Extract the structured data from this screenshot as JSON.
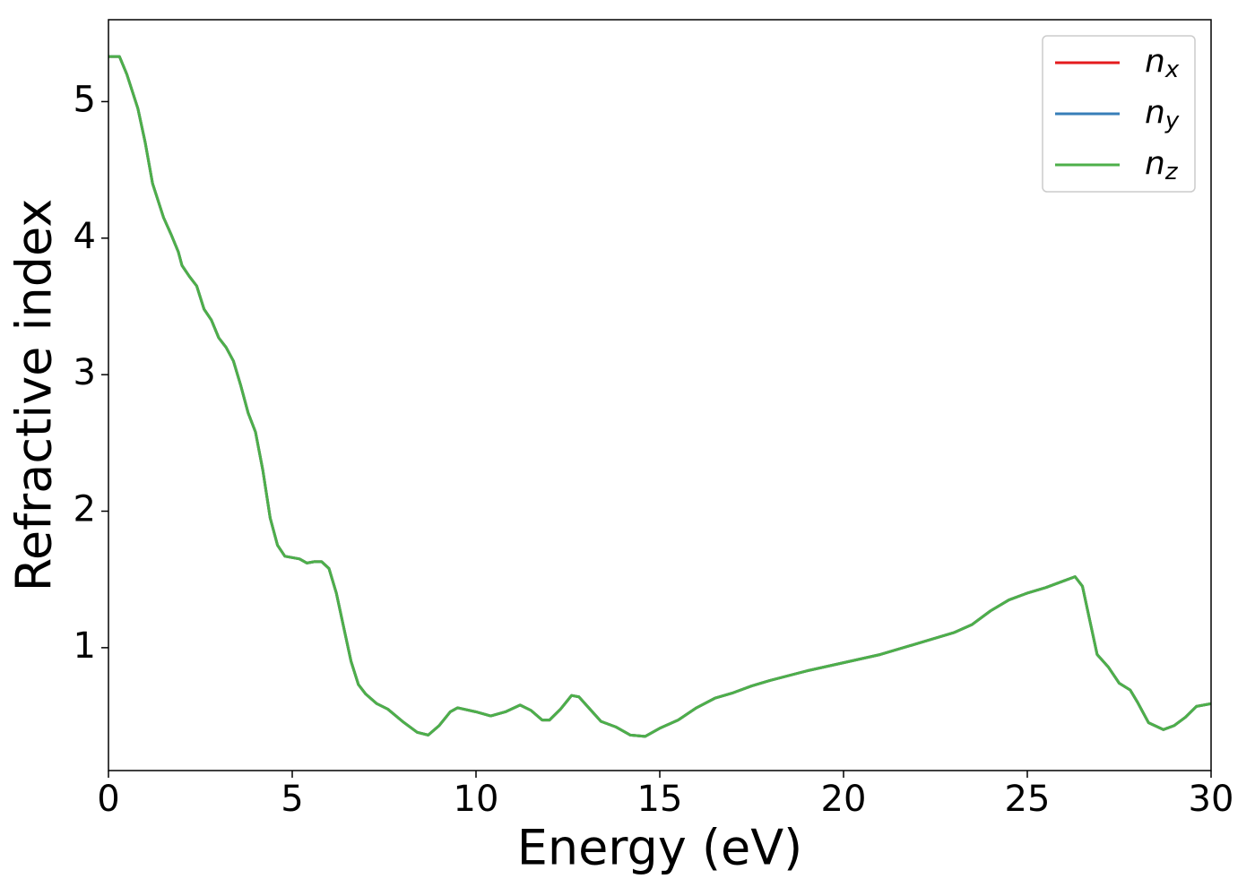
{
  "chart_data": {
    "type": "line",
    "xlabel": "Energy (eV)",
    "ylabel": "Refractive index",
    "x": [
      0,
      0.3,
      0.5,
      0.8,
      1.0,
      1.2,
      1.5,
      1.7,
      1.9,
      2.0,
      2.2,
      2.4,
      2.6,
      2.8,
      3.0,
      3.2,
      3.4,
      3.6,
      3.8,
      4.0,
      4.2,
      4.4,
      4.6,
      4.8,
      5.0,
      5.2,
      5.4,
      5.6,
      5.8,
      6.0,
      6.2,
      6.4,
      6.6,
      6.8,
      7.0,
      7.3,
      7.6,
      8.0,
      8.4,
      8.7,
      9.0,
      9.3,
      9.5,
      10.0,
      10.4,
      10.8,
      11.2,
      11.5,
      11.8,
      12.0,
      12.3,
      12.6,
      12.8,
      13.1,
      13.4,
      13.8,
      14.2,
      14.6,
      15.0,
      15.5,
      16.0,
      16.5,
      17.0,
      17.5,
      18.0,
      19.0,
      20.0,
      21.0,
      22.0,
      23.0,
      23.5,
      24.0,
      24.5,
      25.0,
      25.5,
      26.0,
      26.3,
      26.5,
      26.7,
      26.9,
      27.2,
      27.5,
      27.8,
      28.0,
      28.3,
      28.7,
      29.0,
      29.3,
      29.6,
      30.0
    ],
    "series": [
      {
        "name": "nx",
        "color": "#e41a1c",
        "values": [
          5.33,
          5.33,
          5.2,
          4.95,
          4.7,
          4.4,
          4.15,
          4.03,
          3.9,
          3.8,
          3.72,
          3.65,
          3.48,
          3.4,
          3.27,
          3.2,
          3.1,
          2.92,
          2.72,
          2.58,
          2.3,
          1.95,
          1.75,
          1.67,
          1.66,
          1.65,
          1.62,
          1.63,
          1.63,
          1.58,
          1.4,
          1.15,
          0.9,
          0.73,
          0.66,
          0.59,
          0.55,
          0.46,
          0.38,
          0.36,
          0.43,
          0.53,
          0.56,
          0.53,
          0.5,
          0.53,
          0.58,
          0.54,
          0.47,
          0.47,
          0.55,
          0.65,
          0.64,
          0.55,
          0.46,
          0.42,
          0.36,
          0.35,
          0.41,
          0.47,
          0.56,
          0.63,
          0.67,
          0.72,
          0.76,
          0.83,
          0.89,
          0.95,
          1.03,
          1.11,
          1.17,
          1.27,
          1.35,
          1.4,
          1.44,
          1.49,
          1.52,
          1.45,
          1.2,
          0.95,
          0.86,
          0.74,
          0.69,
          0.6,
          0.45,
          0.4,
          0.43,
          0.49,
          0.57,
          0.59
        ]
      },
      {
        "name": "ny",
        "color": "#377eb8",
        "values": [
          5.33,
          5.33,
          5.2,
          4.95,
          4.7,
          4.4,
          4.15,
          4.03,
          3.9,
          3.8,
          3.72,
          3.65,
          3.48,
          3.4,
          3.27,
          3.2,
          3.1,
          2.92,
          2.72,
          2.58,
          2.3,
          1.95,
          1.75,
          1.67,
          1.66,
          1.65,
          1.62,
          1.63,
          1.63,
          1.58,
          1.4,
          1.15,
          0.9,
          0.73,
          0.66,
          0.59,
          0.55,
          0.46,
          0.38,
          0.36,
          0.43,
          0.53,
          0.56,
          0.53,
          0.5,
          0.53,
          0.58,
          0.54,
          0.47,
          0.47,
          0.55,
          0.65,
          0.64,
          0.55,
          0.46,
          0.42,
          0.36,
          0.35,
          0.41,
          0.47,
          0.56,
          0.63,
          0.67,
          0.72,
          0.76,
          0.83,
          0.89,
          0.95,
          1.03,
          1.11,
          1.17,
          1.27,
          1.35,
          1.4,
          1.44,
          1.49,
          1.52,
          1.45,
          1.2,
          0.95,
          0.86,
          0.74,
          0.69,
          0.6,
          0.45,
          0.4,
          0.43,
          0.49,
          0.57,
          0.59
        ]
      },
      {
        "name": "nz",
        "color": "#4daf4a",
        "values": [
          5.33,
          5.33,
          5.2,
          4.95,
          4.7,
          4.4,
          4.15,
          4.03,
          3.9,
          3.8,
          3.72,
          3.65,
          3.48,
          3.4,
          3.27,
          3.2,
          3.1,
          2.92,
          2.72,
          2.58,
          2.3,
          1.95,
          1.75,
          1.67,
          1.66,
          1.65,
          1.62,
          1.63,
          1.63,
          1.58,
          1.4,
          1.15,
          0.9,
          0.73,
          0.66,
          0.59,
          0.55,
          0.46,
          0.38,
          0.36,
          0.43,
          0.53,
          0.56,
          0.53,
          0.5,
          0.53,
          0.58,
          0.54,
          0.47,
          0.47,
          0.55,
          0.65,
          0.64,
          0.55,
          0.46,
          0.42,
          0.36,
          0.35,
          0.41,
          0.47,
          0.56,
          0.63,
          0.67,
          0.72,
          0.76,
          0.83,
          0.89,
          0.95,
          1.03,
          1.11,
          1.17,
          1.27,
          1.35,
          1.4,
          1.44,
          1.49,
          1.52,
          1.45,
          1.2,
          0.95,
          0.86,
          0.74,
          0.69,
          0.6,
          0.45,
          0.4,
          0.43,
          0.49,
          0.57,
          0.59
        ]
      }
    ],
    "xlim": [
      0,
      30
    ],
    "xticks": [
      0,
      5,
      10,
      15,
      20,
      25,
      30
    ],
    "ylim": [
      0.1,
      5.6
    ],
    "yticks": [
      1,
      2,
      3,
      4,
      5
    ],
    "grid": false,
    "legend": "upper right"
  }
}
